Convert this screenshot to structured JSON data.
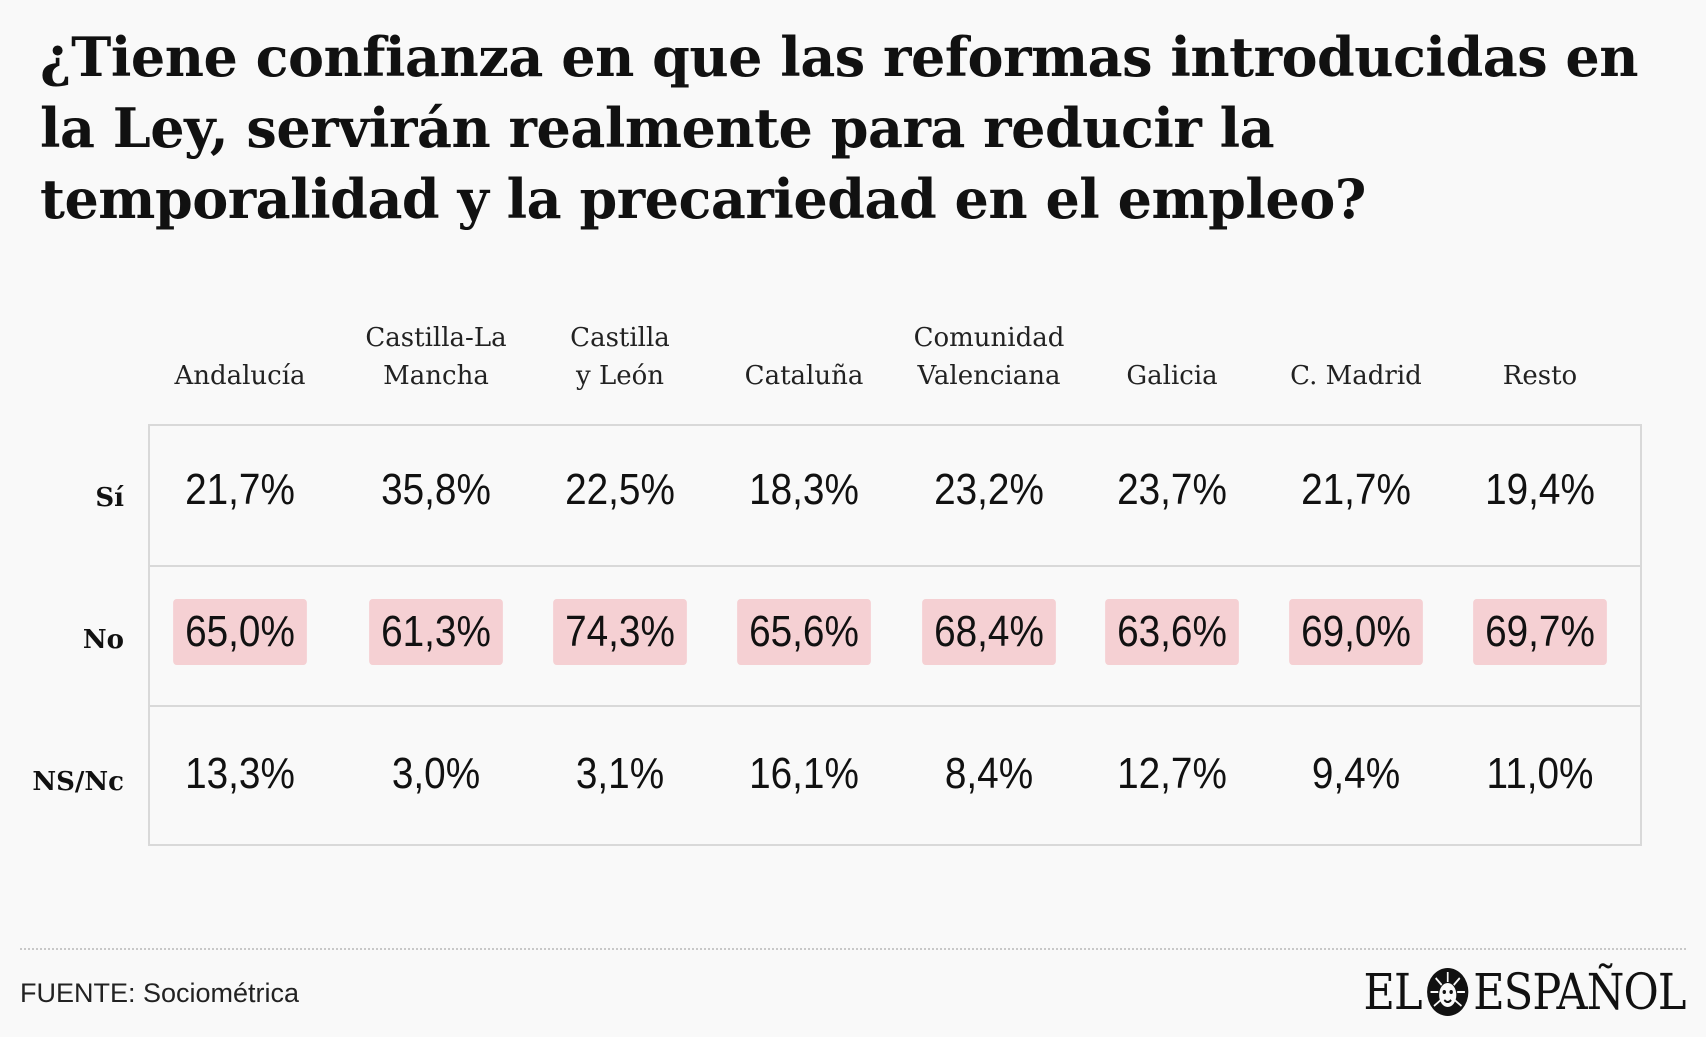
{
  "title": "¿Tiene confianza en que las reformas introducidas en la Ley, servirán realmente para reducir la temporalidad y la precariedad en el empleo?",
  "chart_data": {
    "type": "table",
    "title": "¿Tiene confianza en que las reformas introducidas en la Ley, servirán realmente para reducir la temporalidad y la precariedad en el empleo?",
    "columns": [
      "Andalucía",
      "Castilla-La\nMancha",
      "Castilla\ny León",
      "Cataluña",
      "Comunidad\nValenciana",
      "Galicia",
      "C. Madrid",
      "Resto"
    ],
    "rows": [
      {
        "label": "Sí",
        "values": [
          21.7,
          35.8,
          22.5,
          18.3,
          23.2,
          23.7,
          21.7,
          19.4
        ],
        "display": [
          "21,7%",
          "35,8%",
          "22,5%",
          "18,3%",
          "23,2%",
          "23,7%",
          "21,7%",
          "19,4%"
        ],
        "highlight": false
      },
      {
        "label": "No",
        "values": [
          65.0,
          61.3,
          74.3,
          65.6,
          68.4,
          63.6,
          69.0,
          69.7
        ],
        "display": [
          "65,0%",
          "61,3%",
          "74,3%",
          "65,6%",
          "68,4%",
          "63,6%",
          "69,0%",
          "69,7%"
        ],
        "highlight": true
      },
      {
        "label": "NS/Nc",
        "values": [
          13.3,
          3.0,
          3.1,
          16.1,
          8.4,
          12.7,
          9.4,
          11.0
        ],
        "display": [
          "13,3%",
          "3,0%",
          "3,1%",
          "16,1%",
          "8,4%",
          "12,7%",
          "9,4%",
          "11,0%"
        ],
        "highlight": false
      }
    ],
    "highlight_color": "#f5d0d3"
  },
  "footer": {
    "source": "FUENTE: Sociométrica",
    "logo_left": "EL",
    "logo_right": "ESPAÑOL",
    "logo_icon": "lion-head-icon"
  }
}
